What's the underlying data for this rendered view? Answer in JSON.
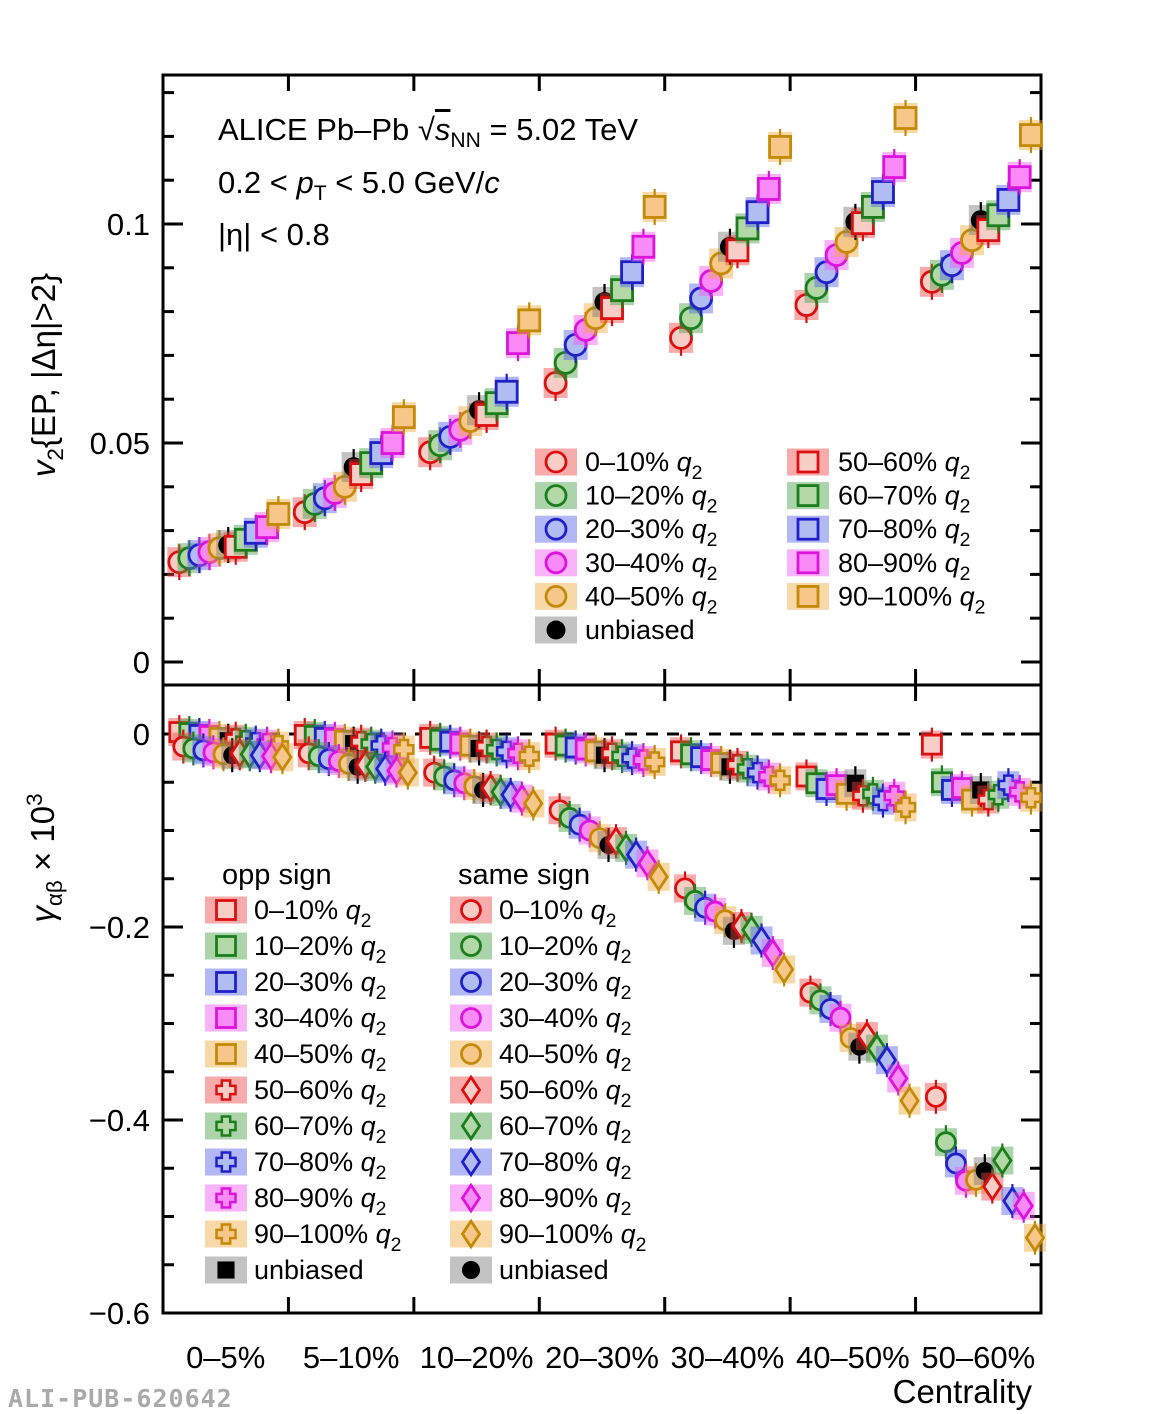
{
  "figure": {
    "annotation": {
      "line1": {
        "prefix": "ALICE  Pb–Pb ",
        "sqrt": "√",
        "s": "s",
        "sub": "NN",
        "suffix": " = 5.02 TeV"
      },
      "line2": {
        "prefix": "0.2 < ",
        "p": "p",
        "sub": "T",
        "mid": " < 5.0 GeV/",
        "c": "c"
      },
      "line3": "|η| < 0.8"
    },
    "watermark": "ALI-PUB-620642"
  },
  "axes": {
    "x": {
      "title": "Centrality",
      "categories": [
        "0–5%",
        "5–10%",
        "10–20%",
        "20–30%",
        "30–40%",
        "40–50%",
        "50–60%"
      ]
    },
    "y_top": {
      "title_v": "v",
      "title_sub": "2",
      "title_rest": "{EP, |Δη|>2}",
      "ticks": [
        {
          "v": 0.1,
          "label": "0.1"
        },
        {
          "v": 0.05,
          "label": "0.05"
        },
        {
          "v": 0.0,
          "label": "0"
        }
      ],
      "minor_step": 0.01,
      "range": [
        -0.005,
        0.134
      ]
    },
    "y_bottom": {
      "title_gamma": "γ",
      "title_sub": "αβ",
      "title_mid": " × 10",
      "title_sup": "3",
      "ticks": [
        {
          "v": 0.0,
          "label": "0"
        },
        {
          "v": -0.2,
          "label": "−0.2"
        },
        {
          "v": -0.4,
          "label": "−0.4"
        },
        {
          "v": -0.6,
          "label": "−0.6"
        }
      ],
      "minor_step": 0.05,
      "range": [
        -0.6,
        0.05
      ]
    }
  },
  "colors": {
    "red": {
      "stroke": "#dc1010",
      "fill": "#f8cdc6",
      "band": "#ef4444"
    },
    "green": {
      "stroke": "#1c7d1c",
      "fill": "#b2d8a6",
      "band": "#44a044"
    },
    "blue": {
      "stroke": "#2020c8",
      "fill": "#b0bdf2",
      "band": "#5560e8"
    },
    "magenta": {
      "stroke": "#dc14dc",
      "fill": "#f98af7",
      "band": "#f455f4"
    },
    "orange": {
      "stroke": "#c28a06",
      "fill": "#f7c78a",
      "band": "#f0a83a"
    },
    "black": {
      "stroke": "#000000",
      "fill": "#000000",
      "band": "#7a7a7a"
    }
  },
  "legends": {
    "top": {
      "col1": [
        {
          "label": "0–10% q₂",
          "color": "red",
          "shape": "circle"
        },
        {
          "label": "10–20% q₂",
          "color": "green",
          "shape": "circle"
        },
        {
          "label": "20–30% q₂",
          "color": "blue",
          "shape": "circle"
        },
        {
          "label": "30–40% q₂",
          "color": "magenta",
          "shape": "circle"
        },
        {
          "label": "40–50% q₂",
          "color": "orange",
          "shape": "circle"
        },
        {
          "label": "unbiased",
          "color": "black",
          "shape": "circle-filled"
        }
      ],
      "col2": [
        {
          "label": "50–60% q₂",
          "color": "red",
          "shape": "square"
        },
        {
          "label": "60–70% q₂",
          "color": "green",
          "shape": "square"
        },
        {
          "label": "70–80% q₂",
          "color": "blue",
          "shape": "square"
        },
        {
          "label": "80–90% q₂",
          "color": "magenta",
          "shape": "square"
        },
        {
          "label": "90–100% q₂",
          "color": "orange",
          "shape": "square"
        }
      ]
    },
    "bottom": {
      "opp_title": "opp sign",
      "same_title": "same sign",
      "opp": [
        {
          "label": "0–10% q₂",
          "color": "red",
          "shape": "square"
        },
        {
          "label": "10–20% q₂",
          "color": "green",
          "shape": "square"
        },
        {
          "label": "20–30% q₂",
          "color": "blue",
          "shape": "square"
        },
        {
          "label": "30–40% q₂",
          "color": "magenta",
          "shape": "square"
        },
        {
          "label": "40–50% q₂",
          "color": "orange",
          "shape": "square"
        },
        {
          "label": "50–60% q₂",
          "color": "red",
          "shape": "cross"
        },
        {
          "label": "60–70% q₂",
          "color": "green",
          "shape": "cross"
        },
        {
          "label": "70–80% q₂",
          "color": "blue",
          "shape": "cross"
        },
        {
          "label": "80–90% q₂",
          "color": "magenta",
          "shape": "cross"
        },
        {
          "label": "90–100% q₂",
          "color": "orange",
          "shape": "cross"
        },
        {
          "label": "unbiased",
          "color": "black",
          "shape": "square-filled"
        }
      ],
      "same": [
        {
          "label": "0–10% q₂",
          "color": "red",
          "shape": "circle"
        },
        {
          "label": "10–20% q₂",
          "color": "green",
          "shape": "circle"
        },
        {
          "label": "20–30% q₂",
          "color": "blue",
          "shape": "circle"
        },
        {
          "label": "30–40% q₂",
          "color": "magenta",
          "shape": "circle"
        },
        {
          "label": "40–50% q₂",
          "color": "orange",
          "shape": "circle"
        },
        {
          "label": "50–60% q₂",
          "color": "red",
          "shape": "diamond"
        },
        {
          "label": "60–70% q₂",
          "color": "green",
          "shape": "diamond"
        },
        {
          "label": "70–80% q₂",
          "color": "blue",
          "shape": "diamond"
        },
        {
          "label": "80–90% q₂",
          "color": "magenta",
          "shape": "diamond"
        },
        {
          "label": "90–100% q₂",
          "color": "orange",
          "shape": "diamond"
        },
        {
          "label": "unbiased",
          "color": "black",
          "shape": "circle-filled"
        }
      ]
    }
  },
  "chart_data": {
    "type": "scatter",
    "x_categories": [
      "0–5%",
      "5–10%",
      "10–20%",
      "20–30%",
      "30–40%",
      "40–50%",
      "50–60%"
    ],
    "panels": [
      {
        "name": "v2",
        "ylabel": "v2{EP, |Δη|>2}",
        "ylim": [
          -0.005,
          0.134
        ],
        "series": [
          {
            "label": "0–10% q₂",
            "color": "red",
            "marker": "circle",
            "values": [
              0.0228,
              0.0342,
              0.0479,
              0.0637,
              0.074,
              0.0815,
              0.0868
            ]
          },
          {
            "label": "10–20% q₂",
            "color": "green",
            "marker": "circle",
            "values": [
              0.0237,
              0.0361,
              0.0495,
              0.0683,
              0.0785,
              0.0854,
              0.0884
            ]
          },
          {
            "label": "20–30% q₂",
            "color": "blue",
            "marker": "circle",
            "values": [
              0.0244,
              0.0374,
              0.0514,
              0.0724,
              0.083,
              0.089,
              0.0906
            ]
          },
          {
            "label": "30–40% q₂",
            "color": "magenta",
            "marker": "circle",
            "values": [
              0.0251,
              0.0386,
              0.053,
              0.0758,
              0.087,
              0.0929,
              0.0934
            ]
          },
          {
            "label": "40–50% q₂",
            "color": "orange",
            "marker": "circle",
            "values": [
              0.026,
              0.04,
              0.055,
              0.0785,
              0.091,
              0.0959,
              0.0963
            ]
          },
          {
            "label": "unbiased",
            "color": "black",
            "marker": "circle-filled",
            "values": [
              0.0267,
              0.0445,
              0.0575,
              0.0822,
              0.0948,
              0.1005,
              0.1009
            ]
          },
          {
            "label": "50–60% q₂",
            "color": "red",
            "marker": "square",
            "values": [
              0.0263,
              0.0429,
              0.0564,
              0.0808,
              0.094,
              0.1002,
              0.0986
            ]
          },
          {
            "label": "60–70% q₂",
            "color": "green",
            "marker": "square",
            "values": [
              0.0279,
              0.0454,
              0.0591,
              0.0849,
              0.099,
              0.1039,
              0.102
            ]
          },
          {
            "label": "70–80% q₂",
            "color": "blue",
            "marker": "square",
            "values": [
              0.0295,
              0.0477,
              0.0617,
              0.089,
              0.1027,
              0.1073,
              0.1055
            ]
          },
          {
            "label": "80–90% q₂",
            "color": "magenta",
            "marker": "square",
            "values": [
              0.0308,
              0.05,
              0.0728,
              0.0948,
              0.108,
              0.113,
              0.1107
            ]
          },
          {
            "label": "90–100% q₂",
            "color": "orange",
            "marker": "square",
            "values": [
              0.0338,
              0.0559,
              0.078,
              0.1039,
              0.1176,
              0.1242,
              0.1203
            ]
          }
        ]
      },
      {
        "name": "gamma_x1000",
        "ylabel": "γαβ × 10³",
        "ylim": [
          -0.6,
          0.05
        ],
        "zero_line": true,
        "series_opp": [
          {
            "label": "0–10% q₂",
            "color": "red",
            "marker": "square",
            "values": [
              0.002,
              -0.001,
              -0.004,
              -0.01,
              -0.018,
              -0.044,
              -0.011
            ]
          },
          {
            "label": "10–20% q₂",
            "color": "green",
            "marker": "square",
            "values": [
              0.001,
              -0.002,
              -0.006,
              -0.012,
              -0.021,
              -0.051,
              -0.05
            ]
          },
          {
            "label": "20–30% q₂",
            "color": "blue",
            "marker": "square",
            "values": [
              -0.001,
              -0.004,
              -0.008,
              -0.014,
              -0.024,
              -0.057,
              -0.058
            ]
          },
          {
            "label": "30–40% q₂",
            "color": "magenta",
            "marker": "square",
            "values": [
              -0.002,
              -0.005,
              -0.01,
              -0.016,
              -0.027,
              -0.053,
              -0.056
            ]
          },
          {
            "label": "40–50% q₂",
            "color": "orange",
            "marker": "square",
            "values": [
              -0.004,
              -0.007,
              -0.012,
              -0.018,
              -0.03,
              -0.062,
              -0.068
            ]
          },
          {
            "label": "unbiased",
            "color": "black",
            "marker": "square-filled",
            "values": [
              -0.007,
              -0.01,
              -0.015,
              -0.022,
              -0.034,
              -0.051,
              -0.058
            ]
          },
          {
            "label": "50–60% q₂",
            "color": "red",
            "marker": "cross",
            "values": [
              -0.005,
              -0.008,
              -0.013,
              -0.02,
              -0.032,
              -0.064,
              -0.068
            ]
          },
          {
            "label": "60–70% q₂",
            "color": "green",
            "marker": "cross",
            "values": [
              -0.007,
              -0.01,
              -0.016,
              -0.023,
              -0.036,
              -0.062,
              -0.063
            ]
          },
          {
            "label": "70–80% q₂",
            "color": "blue",
            "marker": "cross",
            "values": [
              -0.009,
              -0.012,
              -0.018,
              -0.025,
              -0.04,
              -0.069,
              -0.053
            ]
          },
          {
            "label": "80–90% q₂",
            "color": "magenta",
            "marker": "cross",
            "values": [
              -0.01,
              -0.014,
              -0.02,
              -0.027,
              -0.044,
              -0.064,
              -0.06
            ]
          },
          {
            "label": "90–100% q₂",
            "color": "orange",
            "marker": "cross",
            "values": [
              -0.012,
              -0.016,
              -0.023,
              -0.029,
              -0.048,
              -0.076,
              -0.066
            ]
          }
        ],
        "series_same": [
          {
            "label": "0–10% q₂",
            "color": "red",
            "marker": "circle",
            "values": [
              -0.013,
              -0.02,
              -0.04,
              -0.079,
              -0.16,
              -0.268,
              -0.376
            ]
          },
          {
            "label": "10–20% q₂",
            "color": "green",
            "marker": "circle",
            "values": [
              -0.015,
              -0.023,
              -0.044,
              -0.087,
              -0.173,
              -0.276,
              -0.423
            ]
          },
          {
            "label": "20–30% q₂",
            "color": "blue",
            "marker": "circle",
            "values": [
              -0.017,
              -0.026,
              -0.048,
              -0.094,
              -0.18,
              -0.285,
              -0.445
            ]
          },
          {
            "label": "30–40% q₂",
            "color": "magenta",
            "marker": "circle",
            "values": [
              -0.019,
              -0.028,
              -0.051,
              -0.1,
              -0.184,
              -0.294,
              -0.463
            ]
          },
          {
            "label": "40–50% q₂",
            "color": "orange",
            "marker": "circle",
            "values": [
              -0.021,
              -0.031,
              -0.054,
              -0.108,
              -0.193,
              -0.315,
              -0.462
            ]
          },
          {
            "label": "unbiased",
            "color": "black",
            "marker": "circle-filled",
            "values": [
              -0.022,
              -0.034,
              -0.058,
              -0.115,
              -0.204,
              -0.324,
              -0.453
            ]
          },
          {
            "label": "50–60% q₂",
            "color": "red",
            "marker": "diamond",
            "values": [
              -0.02,
              -0.032,
              -0.056,
              -0.111,
              -0.199,
              -0.313,
              -0.469
            ]
          },
          {
            "label": "60–70% q₂",
            "color": "green",
            "marker": "diamond",
            "values": [
              -0.021,
              -0.034,
              -0.06,
              -0.118,
              -0.203,
              -0.326,
              -0.442
            ]
          },
          {
            "label": "70–80% q₂",
            "color": "blue",
            "marker": "diamond",
            "values": [
              -0.022,
              -0.036,
              -0.063,
              -0.125,
              -0.214,
              -0.338,
              -0.484
            ]
          },
          {
            "label": "80–90% q₂",
            "color": "magenta",
            "marker": "diamond",
            "values": [
              -0.023,
              -0.038,
              -0.067,
              -0.134,
              -0.227,
              -0.357,
              -0.489
            ]
          },
          {
            "label": "90–100% q₂",
            "color": "orange",
            "marker": "diamond",
            "values": [
              -0.024,
              -0.04,
              -0.072,
              -0.148,
              -0.244,
              -0.38,
              -0.522
            ]
          }
        ]
      }
    ]
  }
}
